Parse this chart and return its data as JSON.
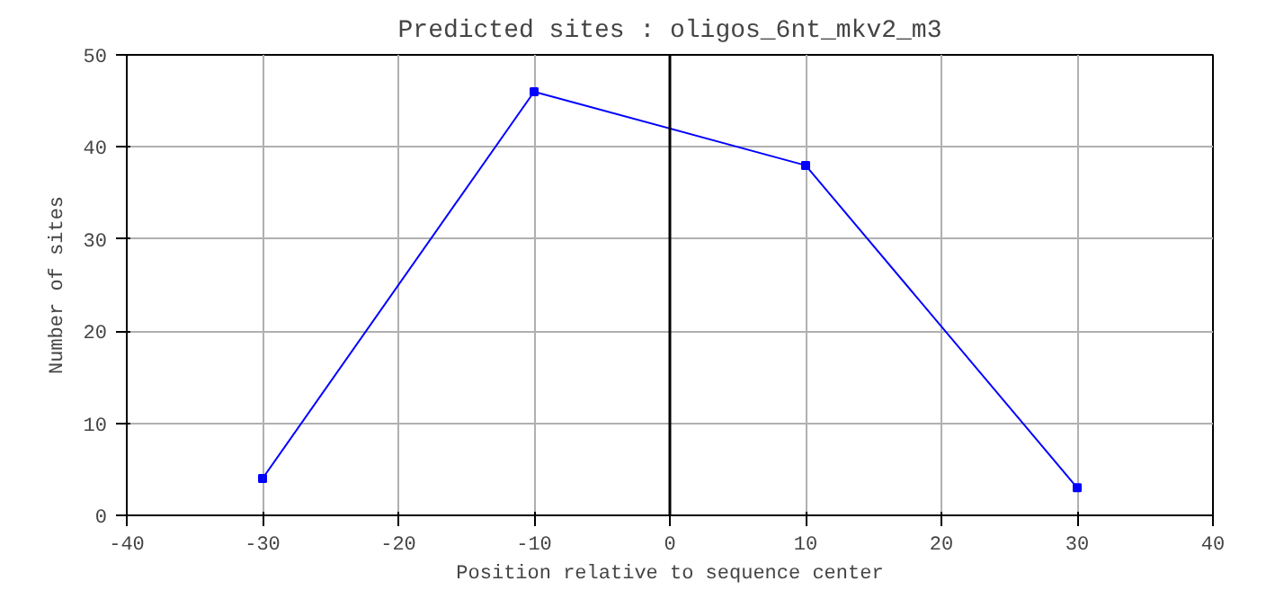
{
  "chart_data": {
    "type": "line",
    "title": "Predicted sites : oligos_6nt_mkv2_m3",
    "xlabel": "Position relative to sequence center",
    "ylabel": "Number of sites",
    "x": [
      -30,
      -10,
      10,
      30
    ],
    "series": [
      {
        "color": "#0000ff",
        "values": [
          4,
          46,
          38,
          3
        ]
      }
    ],
    "xlim": [
      -40,
      40
    ],
    "xticks": [
      -40,
      -30,
      -20,
      -10,
      0,
      10,
      20,
      30,
      40
    ],
    "ylim": [
      0,
      50
    ],
    "yticks": [
      0,
      10,
      20,
      30,
      40,
      50
    ],
    "ref_lines": [
      {
        "axis": "x",
        "value": 0,
        "color": "#000000"
      }
    ],
    "grid": true,
    "marker": "square",
    "line_style": "solid"
  }
}
